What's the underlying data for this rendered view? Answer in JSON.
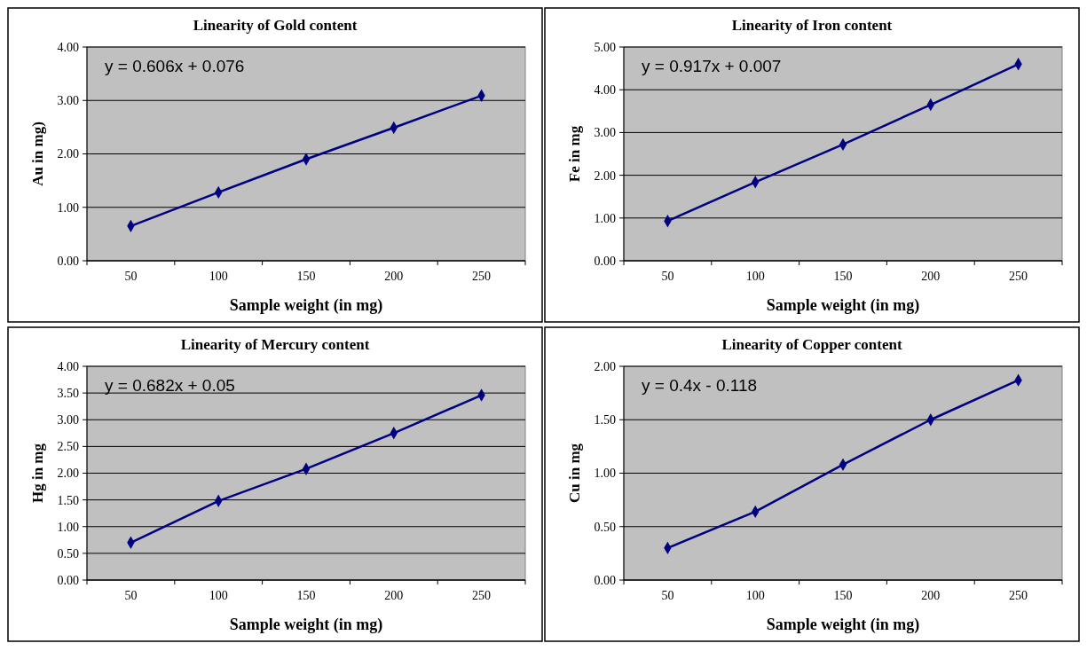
{
  "chart_data": [
    {
      "type": "line",
      "title": "Linearity of Gold content",
      "xlabel": "Sample weight (in mg)",
      "ylabel": "Au in mg)",
      "categories": [
        "50",
        "100",
        "150",
        "200",
        "250"
      ],
      "series": [
        {
          "color": "#000080",
          "values": [
            0.65,
            1.28,
            1.9,
            2.49,
            3.09
          ]
        }
      ],
      "ylim": [
        0,
        4
      ],
      "yticks": [
        {
          "value": 0,
          "label": "0.00"
        },
        {
          "value": 1,
          "label": "1.00"
        },
        {
          "value": 2,
          "label": "2.00"
        },
        {
          "value": 3,
          "label": "3.00"
        },
        {
          "value": 4,
          "label": "4.00"
        }
      ],
      "grid": "y",
      "marker": "diamond",
      "annotations": [
        "y = 0.606x + 0.076"
      ]
    },
    {
      "type": "line",
      "title": "Linearity of Iron content",
      "xlabel": "Sample weight (in mg)",
      "ylabel": "Fe in mg",
      "categories": [
        "50",
        "100",
        "150",
        "200",
        "250"
      ],
      "series": [
        {
          "color": "#000080",
          "values": [
            0.93,
            1.84,
            2.72,
            3.65,
            4.6
          ]
        }
      ],
      "ylim": [
        0,
        5
      ],
      "yticks": [
        {
          "value": 0,
          "label": "0.00"
        },
        {
          "value": 1,
          "label": "1.00"
        },
        {
          "value": 2,
          "label": "2.00"
        },
        {
          "value": 3,
          "label": "3.00"
        },
        {
          "value": 4,
          "label": "4.00"
        },
        {
          "value": 5,
          "label": "5.00"
        }
      ],
      "grid": "y",
      "marker": "diamond",
      "annotations": [
        "y = 0.917x + 0.007"
      ]
    },
    {
      "type": "line",
      "title": "Linearity of Mercury content",
      "xlabel": "Sample weight (in mg)",
      "ylabel": "Hg in mg",
      "categories": [
        "50",
        "100",
        "150",
        "200",
        "250"
      ],
      "series": [
        {
          "color": "#000080",
          "values": [
            0.7,
            1.48,
            2.08,
            2.75,
            3.46
          ]
        }
      ],
      "ylim": [
        0,
        4
      ],
      "yticks": [
        {
          "value": 0,
          "label": "0.00"
        },
        {
          "value": 0.5,
          "label": "0.50"
        },
        {
          "value": 1,
          "label": "1.00"
        },
        {
          "value": 1.5,
          "label": "1.50"
        },
        {
          "value": 2,
          "label": "2.00"
        },
        {
          "value": 2.5,
          "label": "2.50"
        },
        {
          "value": 3,
          "label": "3.00"
        },
        {
          "value": 3.5,
          "label": "3.50"
        },
        {
          "value": 4,
          "label": "4.00"
        }
      ],
      "grid": "y",
      "marker": "diamond",
      "annotations": [
        "y = 0.682x + 0.05"
      ]
    },
    {
      "type": "line",
      "title": "Linearity of Copper content",
      "xlabel": "Sample weight (in mg)",
      "ylabel": "Cu in mg",
      "categories": [
        "50",
        "100",
        "150",
        "200",
        "250"
      ],
      "series": [
        {
          "color": "#000080",
          "values": [
            0.3,
            0.64,
            1.08,
            1.5,
            1.87
          ]
        }
      ],
      "ylim": [
        0,
        2
      ],
      "yticks": [
        {
          "value": 0,
          "label": "0.00"
        },
        {
          "value": 0.5,
          "label": "0.50"
        },
        {
          "value": 1,
          "label": "1.00"
        },
        {
          "value": 1.5,
          "label": "1.50"
        },
        {
          "value": 2,
          "label": "2.00"
        }
      ],
      "grid": "y",
      "marker": "diamond",
      "annotations": [
        "y = 0.4x - 0.118"
      ]
    }
  ]
}
